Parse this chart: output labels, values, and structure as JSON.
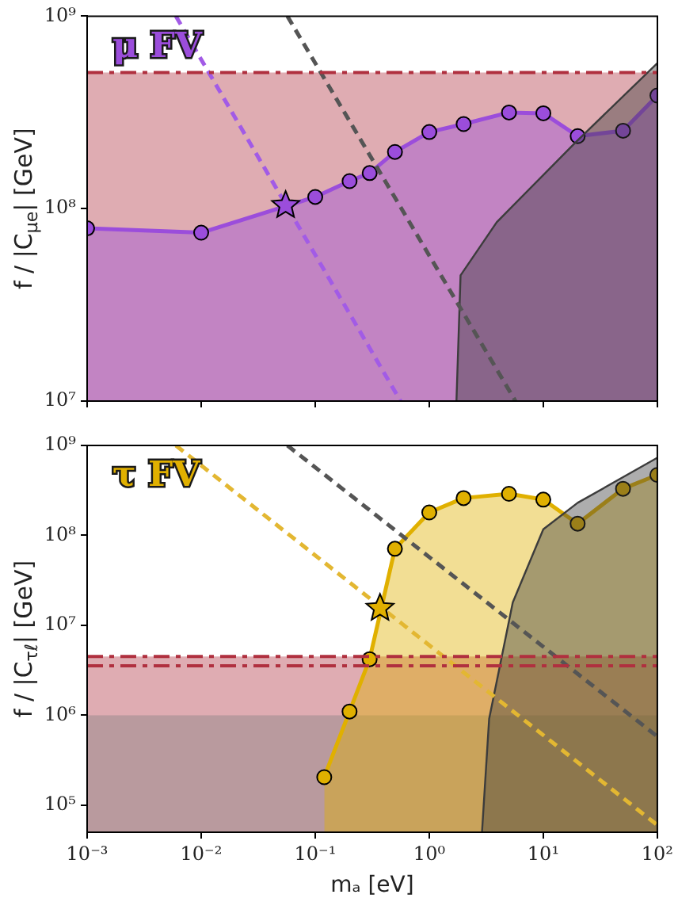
{
  "chart_data": [
    {
      "type": "line",
      "log": "xy",
      "ylabel": "f / |C$_{μe}$| [GeV]",
      "annotations": [
        "μ FV"
      ],
      "xlim": [
        0.001,
        100
      ],
      "ylim": [
        10000000,
        1000000000
      ],
      "xticks": [
        {
          "value": 0.001,
          "label": null
        },
        {
          "value": 0.01,
          "label": null
        },
        {
          "value": 0.1,
          "label": null
        },
        {
          "value": 1,
          "label": null
        },
        {
          "value": 10,
          "label": null
        },
        {
          "value": 100,
          "label": null
        }
      ],
      "yticks": [
        {
          "value": 10000000,
          "label": "10⁷"
        },
        {
          "value": 100000000,
          "label": "10⁸"
        },
        {
          "value": 1000000000,
          "label": "10⁹"
        }
      ],
      "tick_labels": "y",
      "grid": false,
      "legend": false,
      "series": [
        {
          "type": "area",
          "color": "#9b4ddb",
          "marker": "circle",
          "x": [
            0.001,
            0.01,
            0.1,
            0.2,
            0.3,
            0.5,
            1,
            2,
            5,
            10,
            20,
            50,
            100
          ],
          "values": [
            79000000,
            75000000,
            115000000,
            139000000,
            153000000,
            197000000,
            250000000,
            275000000,
            316000000,
            313000000,
            238000000,
            254000000,
            387000000
          ]
        },
        {
          "type": "area",
          "color": "#3c3c3c",
          "marker": "none",
          "x": [
            1.73,
            1.88,
            3.9,
            19,
            100
          ],
          "values": [
            10000000,
            45000000,
            85000000,
            220000000,
            570000000
          ]
        },
        {
          "type": "line",
          "color": "#a25be6",
          "marker": "none",
          "line_style": "dashed",
          "x": [
            0.006,
            0.56
          ],
          "values": [
            1000000000,
            10000000
          ]
        },
        {
          "type": "line",
          "color": "#555555",
          "marker": "none",
          "line_style": "dashed",
          "x": [
            0.057,
            5.7
          ],
          "values": [
            1000000000,
            10000000
          ]
        },
        {
          "type": "scatter",
          "color": "#9b4ddb",
          "marker": "star",
          "x": [
            0.055
          ],
          "values": [
            104000000
          ]
        }
      ],
      "bands": [
        {
          "axis": "y",
          "from": 10000000,
          "to": 510000000,
          "color": "#b0303f"
        }
      ],
      "ref_lines": [
        {
          "axis": "y",
          "value": 510000000,
          "color": "#b0303f",
          "line_style": "dashed"
        }
      ]
    },
    {
      "type": "line",
      "log": "xy",
      "xlabel": "mₐ [eV]",
      "ylabel": "f / |C$_{τℓ}$| [GeV]",
      "annotations": [
        "τ FV"
      ],
      "xlim": [
        0.001,
        100
      ],
      "ylim": [
        50000,
        1000000000
      ],
      "xticks": [
        {
          "value": 0.001,
          "label": "10⁻³"
        },
        {
          "value": 0.01,
          "label": "10⁻²"
        },
        {
          "value": 0.1,
          "label": "10⁻¹"
        },
        {
          "value": 1,
          "label": "10⁰"
        },
        {
          "value": 10,
          "label": "10¹"
        },
        {
          "value": 100,
          "label": "10²"
        }
      ],
      "yticks": [
        {
          "value": 100000,
          "label": "10⁵"
        },
        {
          "value": 1000000,
          "label": "10⁶"
        },
        {
          "value": 10000000,
          "label": "10⁷"
        },
        {
          "value": 100000000,
          "label": "10⁸"
        },
        {
          "value": 1000000000,
          "label": "10⁹"
        }
      ],
      "grid": false,
      "legend": false,
      "series": [
        {
          "type": "area",
          "color": "#e0b000",
          "marker": "circle",
          "x": [
            0.12,
            0.2,
            0.3,
            0.5,
            1,
            2,
            5,
            10,
            20,
            50,
            100
          ],
          "values": [
            205000,
            1100000,
            4200000,
            71000000,
            180000000,
            260000000,
            290000000,
            250000000,
            135000000,
            330000000,
            470000000
          ]
        },
        {
          "type": "area",
          "color": "#3c3c3c",
          "marker": "none",
          "x": [
            2.9,
            3.35,
            5.4,
            10,
            20,
            100
          ],
          "values": [
            50000,
            910000,
            18000000,
            117000000,
            230000000,
            730000000
          ]
        },
        {
          "type": "line",
          "color": "#e3b732",
          "marker": "none",
          "line_style": "dashed",
          "x": [
            0.006,
            100
          ],
          "values": [
            1000000000,
            60000
          ]
        },
        {
          "type": "line",
          "color": "#555555",
          "marker": "none",
          "line_style": "dashed",
          "x": [
            0.057,
            100
          ],
          "values": [
            1000000000,
            580000
          ]
        },
        {
          "type": "scatter",
          "color": "#e0b000",
          "marker": "star",
          "x": [
            0.37
          ],
          "values": [
            15500000
          ]
        }
      ],
      "bands": [
        {
          "axis": "y",
          "from": 50000,
          "to": 4500000,
          "color": "#b0303f"
        },
        {
          "axis": "y",
          "from": 50000,
          "to": 1000000,
          "color": "#808080"
        }
      ],
      "ref_lines": [
        {
          "axis": "y",
          "value": 4500000,
          "color": "#b0303f",
          "line_style": "dashed"
        },
        {
          "axis": "y",
          "value": 3550000,
          "color": "#b0303f",
          "line_style": "dashed"
        }
      ]
    }
  ]
}
